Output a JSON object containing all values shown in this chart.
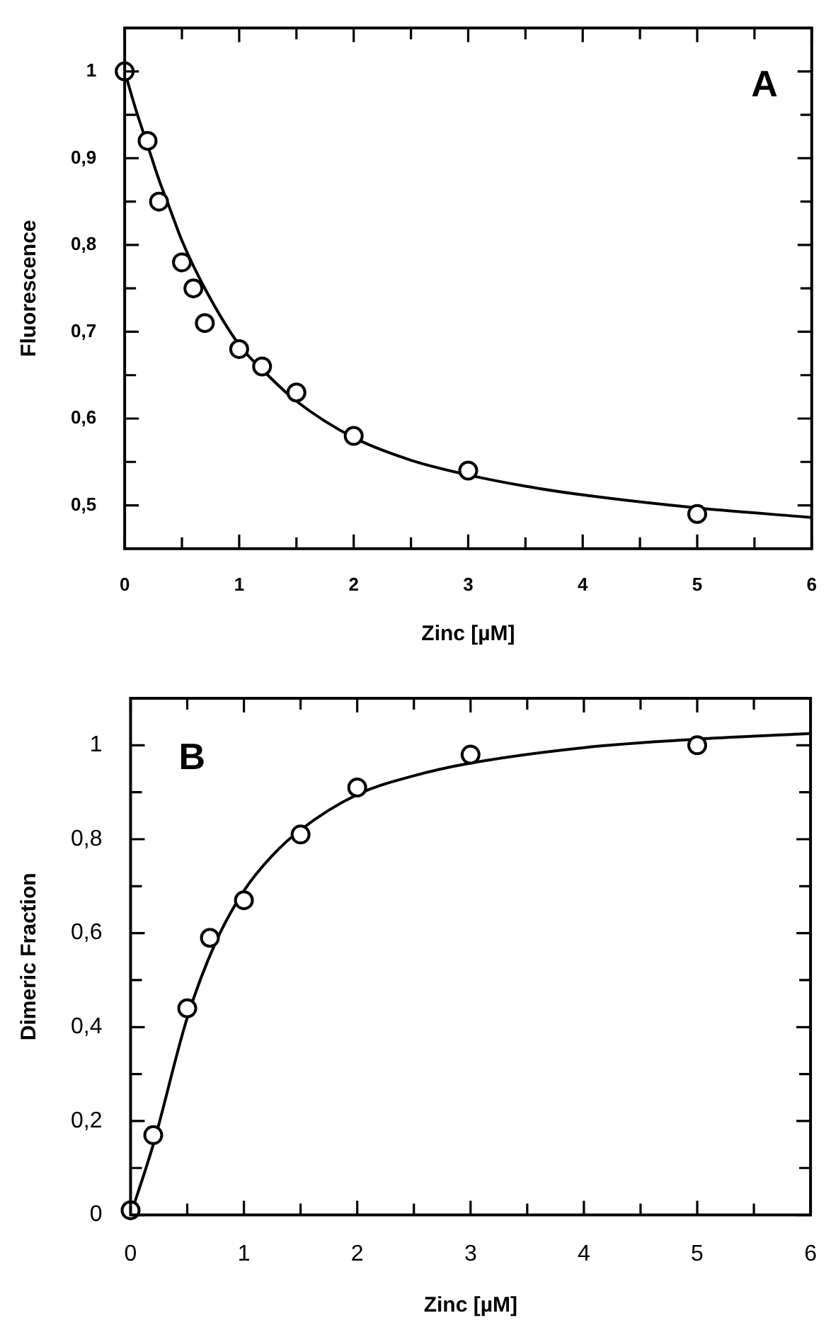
{
  "chart_data": [
    {
      "type": "scatter",
      "xlabel": "Zinc [µM]",
      "ylabel": "Fluorescence",
      "annotations": [
        "A"
      ],
      "xlim": [
        0,
        6
      ],
      "ylim": [
        0.45,
        1.05
      ],
      "xticks": [
        0,
        {
          "value": 0.5,
          "label": null
        },
        1,
        {
          "value": 1.5,
          "label": null
        },
        2,
        {
          "value": 2.5,
          "label": null
        },
        3,
        {
          "value": 3.5,
          "label": null
        },
        4,
        {
          "value": 4.5,
          "label": null
        },
        5,
        {
          "value": 5.5,
          "label": null
        },
        6
      ],
      "yticks": [
        {
          "value": 0.5,
          "label": "0,5"
        },
        {
          "value": 0.55,
          "label": null
        },
        {
          "value": 0.6,
          "label": "0,6"
        },
        {
          "value": 0.65,
          "label": null
        },
        {
          "value": 0.7,
          "label": "0,7"
        },
        {
          "value": 0.75,
          "label": null
        },
        {
          "value": 0.8,
          "label": "0,8"
        },
        {
          "value": 0.85,
          "label": null
        },
        {
          "value": 0.9,
          "label": "0,9"
        },
        {
          "value": 0.95,
          "label": null
        },
        {
          "value": 1,
          "label": "1"
        }
      ],
      "series": [
        {
          "type": "scatter",
          "marker": "circle",
          "color": "#000000",
          "x": [
            0,
            0.2,
            0.3,
            0.5,
            0.6,
            0.7,
            1,
            1.2,
            1.5,
            2,
            3,
            5
          ],
          "values": [
            1,
            0.92,
            0.85,
            0.78,
            0.75,
            0.71,
            0.68,
            0.66,
            0.63,
            0.58,
            0.54,
            0.49
          ]
        },
        {
          "type": "line",
          "color": "#000000",
          "x": [
            0,
            0.1,
            0.2,
            0.3,
            0.4,
            0.5,
            0.7,
            1,
            1.25,
            1.5,
            2,
            2.5,
            3,
            3.5,
            4,
            5,
            6
          ],
          "values": [
            1,
            0.955,
            0.915,
            0.875,
            0.84,
            0.805,
            0.75,
            0.685,
            0.65,
            0.62,
            0.578,
            0.552,
            0.535,
            0.522,
            0.512,
            0.497,
            0.486
          ]
        }
      ]
    },
    {
      "type": "scatter",
      "xlabel": "Zinc [µM]",
      "ylabel": "Dimeric Fraction",
      "annotations": [
        "B"
      ],
      "xlim": [
        0,
        6
      ],
      "ylim": [
        0,
        1.1
      ],
      "xticks": [
        0,
        {
          "value": 0.5,
          "label": null
        },
        1,
        {
          "value": 1.5,
          "label": null
        },
        2,
        {
          "value": 2.5,
          "label": null
        },
        3,
        {
          "value": 3.5,
          "label": null
        },
        4,
        {
          "value": 4.5,
          "label": null
        },
        5,
        {
          "value": 5.5,
          "label": null
        },
        6
      ],
      "yticks": [
        0,
        {
          "value": 0.1,
          "label": null
        },
        {
          "value": 0.2,
          "label": "0,2"
        },
        {
          "value": 0.3,
          "label": null
        },
        {
          "value": 0.4,
          "label": "0,4"
        },
        {
          "value": 0.5,
          "label": null
        },
        {
          "value": 0.6,
          "label": "0,6"
        },
        {
          "value": 0.7,
          "label": null
        },
        {
          "value": 0.8,
          "label": "0,8"
        },
        {
          "value": 0.9,
          "label": null
        },
        {
          "value": 1,
          "label": "1"
        }
      ],
      "series": [
        {
          "type": "scatter",
          "marker": "circle",
          "color": "#000000",
          "x": [
            0,
            0.2,
            0.5,
            0.7,
            1,
            1.5,
            2,
            3,
            5
          ],
          "values": [
            0.01,
            0.17,
            0.44,
            0.59,
            0.67,
            0.81,
            0.91,
            0.98,
            1.0
          ]
        },
        {
          "type": "line",
          "color": "#000000",
          "x": [
            0,
            0.2,
            0.5,
            0.75,
            1,
            1.25,
            1.5,
            2,
            2.5,
            3,
            4,
            5,
            6
          ],
          "values": [
            0,
            0.15,
            0.42,
            0.58,
            0.69,
            0.765,
            0.82,
            0.895,
            0.935,
            0.962,
            0.995,
            1.013,
            1.025
          ]
        }
      ]
    }
  ]
}
